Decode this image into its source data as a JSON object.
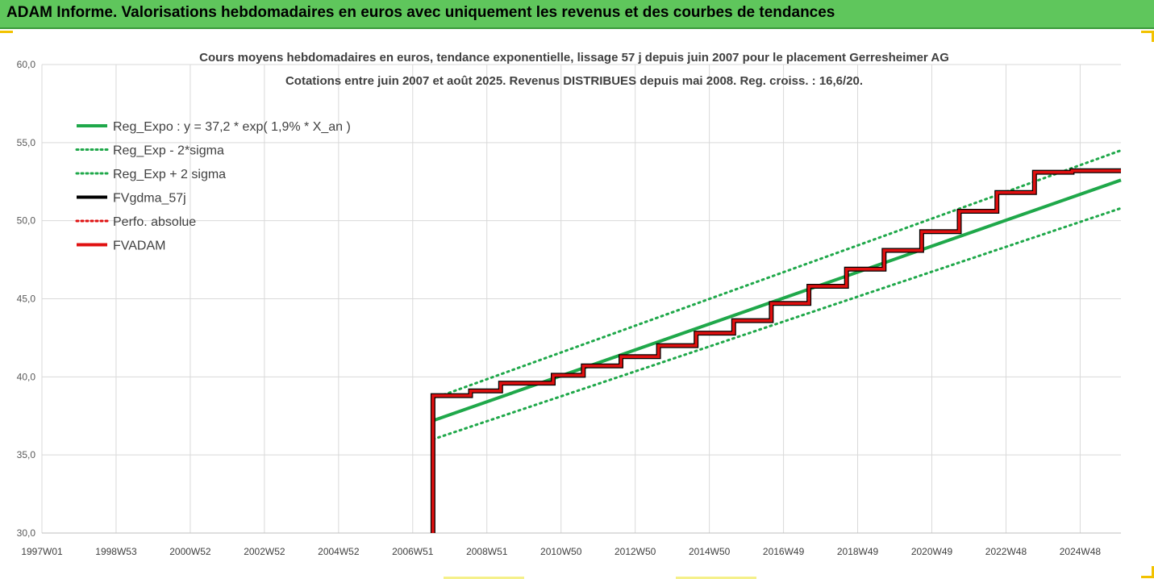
{
  "banner": {
    "title": "ADAM Informe. Valorisations hebdomadaires en euros avec uniquement les revenus et des courbes de tendances"
  },
  "colors": {
    "banner": "#5fc65c",
    "reg_expo": "#1fa84a",
    "sigma": "#1fa84a",
    "fvgdma": "#000000",
    "perfo": "#e01010",
    "fvadam": "#e01010",
    "grid": "#d9d9d9"
  },
  "chart_data": {
    "type": "line",
    "title": "Cours moyens hebdomadaires en euros, tendance exponentielle, lissage 57 j depuis juin 2007 pour le placement Gerresheimer AG",
    "subtitle": "Cotations entre juin 2007 et août 2025. Revenus DISTRIBUES depuis mai 2008. Reg. croiss. : 16,6/20.",
    "ylim": [
      30,
      60
    ],
    "y_ticks": [
      "30,0",
      "35,0",
      "40,0",
      "45,0",
      "50,0",
      "55,0",
      "60,0"
    ],
    "x_ticks": [
      "1997W01",
      "1998W53",
      "2000W52",
      "2002W52",
      "2004W52",
      "2006W51",
      "2008W51",
      "2010W50",
      "2012W50",
      "2014W50",
      "2016W49",
      "2018W49",
      "2020W49",
      "2022W48",
      "2024W48"
    ],
    "x_range": [
      1997.0,
      2025.7
    ],
    "grid": true,
    "legend_position": "top-left",
    "legend": [
      {
        "name": "Reg_Expo : y = 37,2 * exp( 1,9% *  X_an )",
        "style": "solid",
        "color": "#1fa84a"
      },
      {
        "name": "Reg_Exp - 2*sigma",
        "style": "dotted",
        "color": "#1fa84a"
      },
      {
        "name": "Reg_Exp + 2 sigma",
        "style": "dotted",
        "color": "#1fa84a"
      },
      {
        "name": "FVgdma_57j",
        "style": "solid",
        "color": "#000000"
      },
      {
        "name": "Perfo. absolue",
        "style": "dotted",
        "color": "#e01010"
      },
      {
        "name": "FVADAM",
        "style": "solid",
        "color": "#e01010"
      }
    ],
    "series": [
      {
        "name": "Reg_Expo : y = 37,2 * exp( 1,9% *  X_an )",
        "x": [
          2007.4,
          2025.7
        ],
        "y": [
          37.2,
          52.6
        ]
      },
      {
        "name": "Reg_Exp - 2*sigma",
        "x": [
          2007.4,
          2025.7
        ],
        "y": [
          36.0,
          50.8
        ]
      },
      {
        "name": "Reg_Exp + 2 sigma",
        "x": [
          2007.4,
          2025.7
        ],
        "y": [
          38.6,
          54.5
        ]
      },
      {
        "name": "FVADAM",
        "x": [
          2007.4,
          2007.4,
          2008.4,
          2008.4,
          2009.2,
          2009.2,
          2010.6,
          2010.6,
          2011.4,
          2011.4,
          2012.4,
          2012.4,
          2013.4,
          2013.4,
          2014.4,
          2014.4,
          2015.4,
          2015.4,
          2016.4,
          2016.4,
          2017.4,
          2017.4,
          2018.4,
          2018.4,
          2019.4,
          2019.4,
          2020.4,
          2020.4,
          2021.4,
          2021.4,
          2022.4,
          2022.4,
          2023.4,
          2023.4,
          2024.4,
          2024.4,
          2025.7
        ],
        "y": [
          30.0,
          38.8,
          38.8,
          39.1,
          39.1,
          39.6,
          39.6,
          40.1,
          40.1,
          40.7,
          40.7,
          41.3,
          41.3,
          42.0,
          42.0,
          42.8,
          42.8,
          43.6,
          43.6,
          44.7,
          44.7,
          45.8,
          45.8,
          46.9,
          46.9,
          48.1,
          48.1,
          49.3,
          49.3,
          50.6,
          50.6,
          51.8,
          51.8,
          53.1,
          53.1,
          53.2,
          53.2
        ]
      }
    ]
  }
}
